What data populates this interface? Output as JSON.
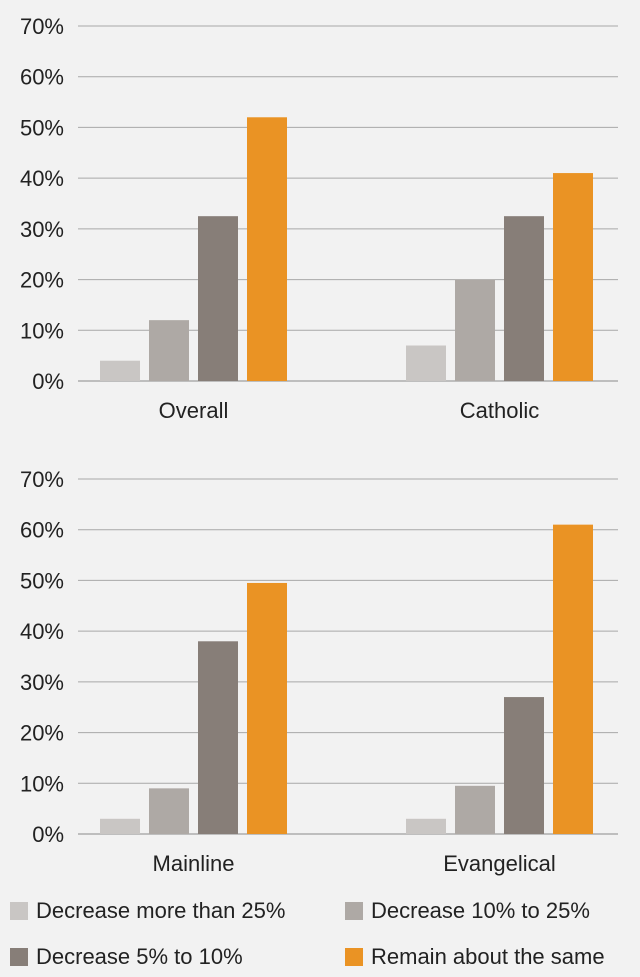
{
  "chart_data": [
    {
      "type": "bar",
      "categories": [
        "Overall",
        "Catholic"
      ],
      "series": [
        {
          "name": "Decrease more than 25%",
          "color": "#c9c6c4",
          "values": [
            4,
            7
          ]
        },
        {
          "name": "Decrease 10% to 25%",
          "color": "#aea9a5",
          "values": [
            12,
            20
          ]
        },
        {
          "name": "Decrease 5% to 10%",
          "color": "#877e78",
          "values": [
            32.5,
            32.5
          ]
        },
        {
          "name": "Remain about the same",
          "color": "#ea9324",
          "values": [
            52,
            41
          ]
        }
      ],
      "ylim": [
        0,
        70
      ],
      "yticks": [
        "0%",
        "10%",
        "20%",
        "30%",
        "40%",
        "50%",
        "60%",
        "70%"
      ],
      "grid": true
    },
    {
      "type": "bar",
      "categories": [
        "Mainline",
        "Evangelical"
      ],
      "series": [
        {
          "name": "Decrease more than 25%",
          "color": "#c9c6c4",
          "values": [
            3,
            3
          ]
        },
        {
          "name": "Decrease 10% to 25%",
          "color": "#aea9a5",
          "values": [
            9,
            9.5
          ]
        },
        {
          "name": "Decrease 5% to 10%",
          "color": "#877e78",
          "values": [
            38,
            27
          ]
        },
        {
          "name": "Remain about the same",
          "color": "#ea9324",
          "values": [
            49.5,
            61
          ]
        }
      ],
      "ylim": [
        0,
        70
      ],
      "yticks": [
        "0%",
        "10%",
        "20%",
        "30%",
        "40%",
        "50%",
        "60%",
        "70%"
      ],
      "grid": true
    }
  ],
  "legend": {
    "placement": "bottom",
    "items": [
      {
        "label": "Decrease more than 25%",
        "color": "#c9c6c4"
      },
      {
        "label": "Decrease 10% to 25%",
        "color": "#aea9a5"
      },
      {
        "label": "Decrease 5% to 10%",
        "color": "#877e78"
      },
      {
        "label": "Remain about the same",
        "color": "#ea9324"
      }
    ]
  }
}
